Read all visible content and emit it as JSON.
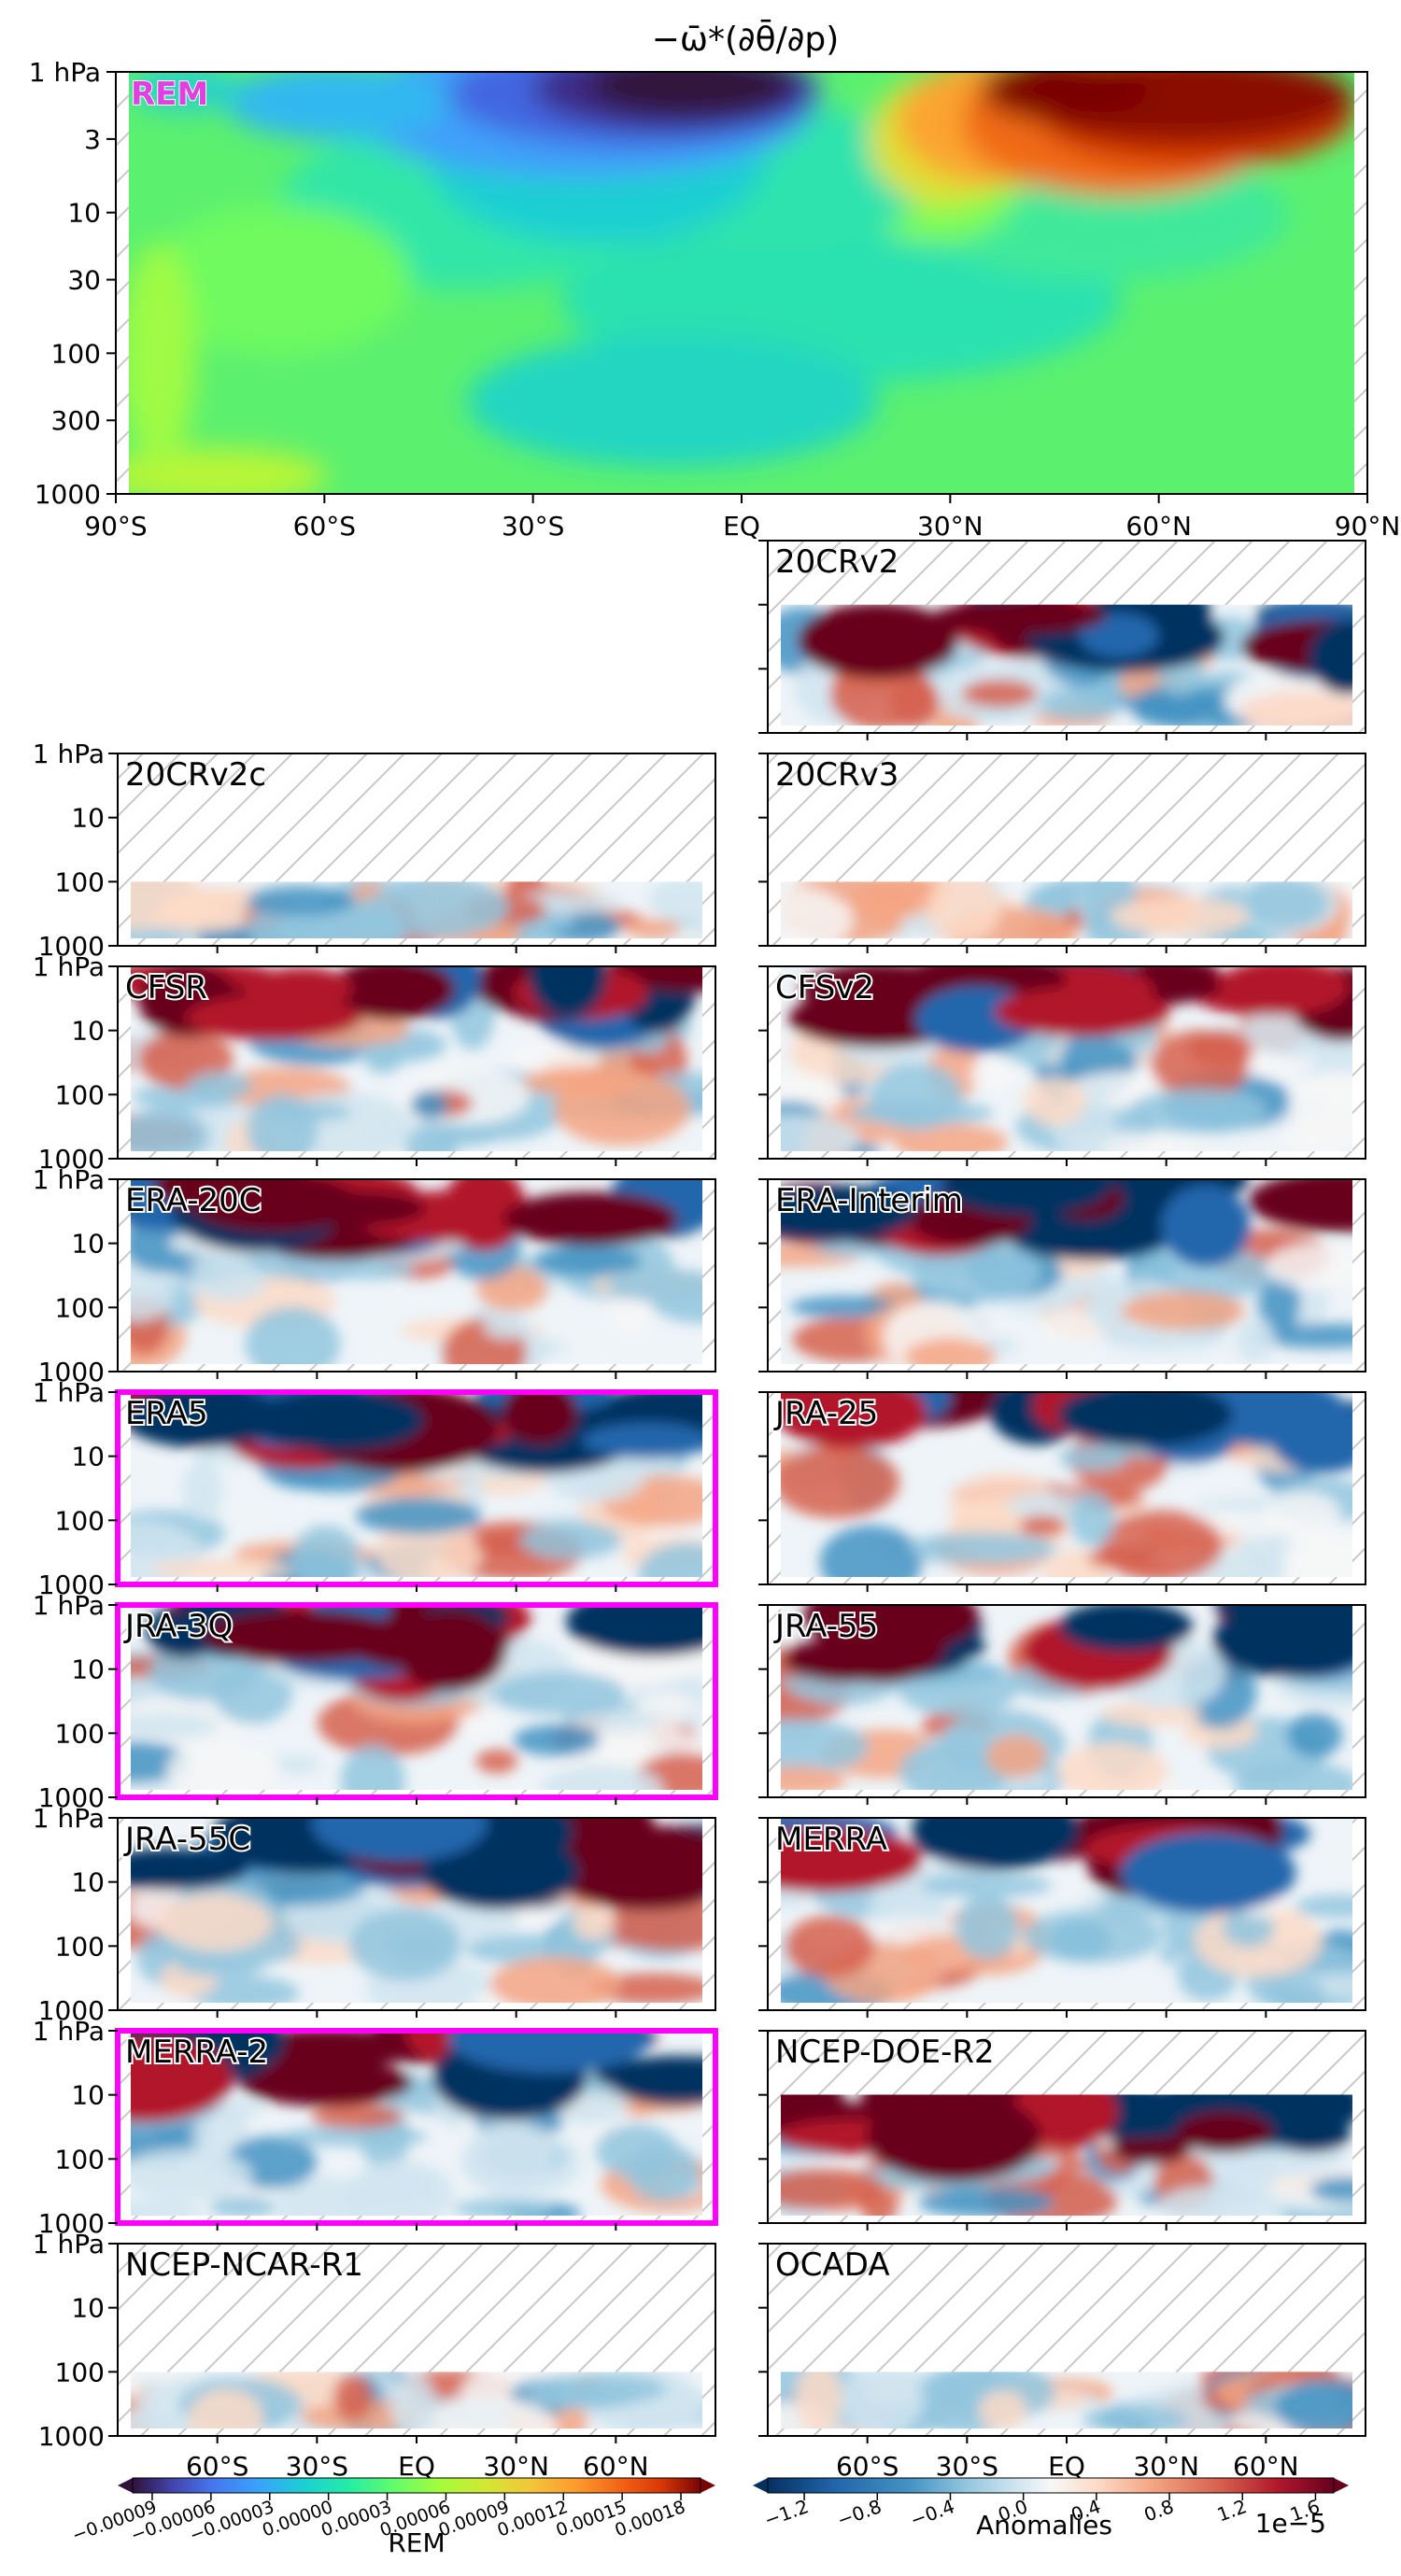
{
  "chart_data": {
    "type": "heatmap",
    "title": "−ω̄*(∂θ̄/∂p)",
    "main_panel": {
      "label": "REM",
      "x_ticks": [
        "90°S",
        "60°S",
        "30°S",
        "EQ",
        "30°N",
        "60°N",
        "90°N"
      ],
      "y_ticks": [
        "1 hPa",
        "3",
        "10",
        "30",
        "100",
        "300",
        "1000"
      ],
      "y_scale": "log",
      "ylim": [
        1000,
        1
      ],
      "xlim": [
        -90,
        90
      ],
      "colormap": "turbo"
    },
    "small_panels": [
      {
        "label": "20CRv2",
        "column": "right",
        "row": 0,
        "top_hpa": 10,
        "highlight": false
      },
      {
        "label": "20CRv2c",
        "column": "left",
        "row": 1,
        "top_hpa": 100,
        "highlight": false
      },
      {
        "label": "20CRv3",
        "column": "right",
        "row": 1,
        "top_hpa": 100,
        "highlight": false
      },
      {
        "label": "CFSR",
        "column": "left",
        "row": 2,
        "top_hpa": 1,
        "highlight": false
      },
      {
        "label": "CFSv2",
        "column": "right",
        "row": 2,
        "top_hpa": 1,
        "highlight": false
      },
      {
        "label": "ERA-20C",
        "column": "left",
        "row": 3,
        "top_hpa": 1,
        "highlight": false
      },
      {
        "label": "ERA-Interim",
        "column": "right",
        "row": 3,
        "top_hpa": 1,
        "highlight": false
      },
      {
        "label": "ERA5",
        "column": "left",
        "row": 4,
        "top_hpa": 1,
        "highlight": true
      },
      {
        "label": "JRA-25",
        "column": "right",
        "row": 4,
        "top_hpa": 1,
        "highlight": false
      },
      {
        "label": "JRA-3Q",
        "column": "left",
        "row": 5,
        "top_hpa": 1,
        "highlight": true
      },
      {
        "label": "JRA-55",
        "column": "right",
        "row": 5,
        "top_hpa": 1,
        "highlight": false
      },
      {
        "label": "JRA-55C",
        "column": "left",
        "row": 6,
        "top_hpa": 1,
        "highlight": false
      },
      {
        "label": "MERRA",
        "column": "right",
        "row": 6,
        "top_hpa": 1,
        "highlight": false
      },
      {
        "label": "MERRA-2",
        "column": "left",
        "row": 7,
        "top_hpa": 1,
        "highlight": true
      },
      {
        "label": "NCEP-DOE-R2",
        "column": "right",
        "row": 7,
        "top_hpa": 10,
        "highlight": false
      },
      {
        "label": "NCEP-NCAR-R1",
        "column": "left",
        "row": 8,
        "top_hpa": 100,
        "highlight": false
      },
      {
        "label": "OCADA",
        "column": "right",
        "row": 8,
        "top_hpa": 100,
        "highlight": false
      }
    ],
    "small_y_ticks": [
      "1 hPa",
      "10",
      "100",
      "1000"
    ],
    "small_x_ticks": [
      "60°S",
      "30°S",
      "EQ",
      "30°N",
      "60°N"
    ],
    "colorbar_rem": {
      "label": "REM",
      "ticks": [
        "−0.00009",
        "−0.00006",
        "−0.00003",
        "0.00000",
        "0.00003",
        "0.00006",
        "0.00009",
        "0.00012",
        "0.00015",
        "0.00018"
      ],
      "range": [
        -0.0001,
        0.00019
      ],
      "colormap": "turbo",
      "extend": "both"
    },
    "colorbar_anomalies": {
      "label": "Anomalies",
      "multiplier": "1e−5",
      "ticks": [
        "−1.2",
        "−0.8",
        "−0.4",
        "0.0",
        "0.4",
        "0.8",
        "1.2",
        "1.6"
      ],
      "range": [
        -1.4,
        1.7
      ],
      "colormap": "RdBu_r",
      "extend": "both"
    },
    "highlight_color": "#ff00ff"
  }
}
